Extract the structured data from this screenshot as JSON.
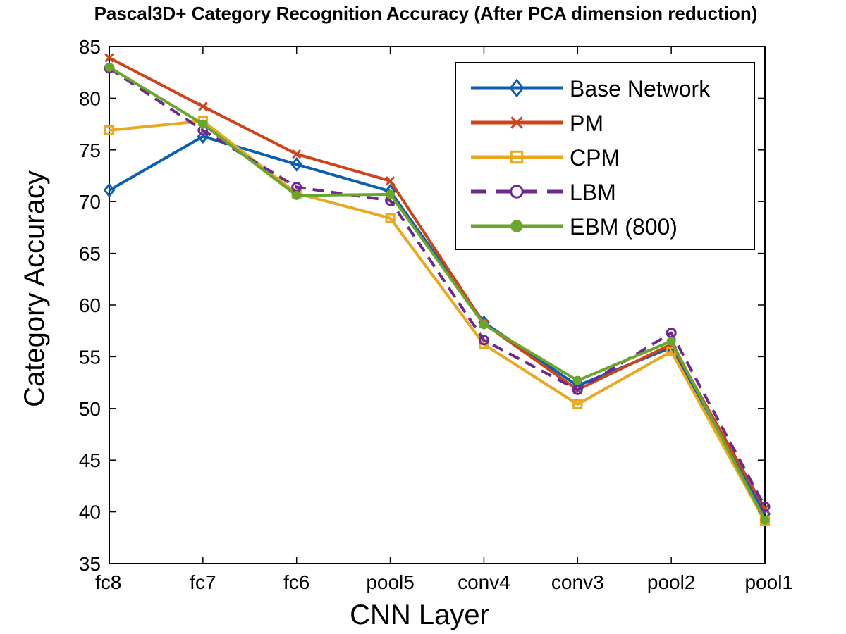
{
  "chart_data": {
    "type": "line",
    "title": "Pascal3D+ Category Recognition Accuracy (After PCA dimension reduction)",
    "xlabel": "CNN Layer",
    "ylabel": "Category Accuracy",
    "categories": [
      "fc8",
      "fc7",
      "fc6",
      "pool5",
      "conv4",
      "conv3",
      "pool2",
      "pool1"
    ],
    "ylim": [
      35,
      85
    ],
    "yticks": [
      35,
      40,
      45,
      50,
      55,
      60,
      65,
      70,
      75,
      80,
      85
    ],
    "grid": false,
    "legend_position": "top-right",
    "series": [
      {
        "name": "Base Network",
        "color": "#0c5fb0",
        "marker": "diamond",
        "dash": "solid",
        "values": [
          71.1,
          76.3,
          73.6,
          71.0,
          58.3,
          52.2,
          55.9,
          39.8
        ]
      },
      {
        "name": "PM",
        "color": "#d0431a",
        "marker": "x",
        "dash": "solid",
        "values": [
          83.9,
          79.2,
          74.6,
          72.0,
          58.2,
          51.8,
          56.2,
          40.3
        ]
      },
      {
        "name": "CPM",
        "color": "#eaa81f",
        "marker": "square",
        "dash": "solid",
        "values": [
          76.9,
          77.8,
          70.8,
          68.4,
          56.2,
          50.4,
          55.5,
          39.1
        ]
      },
      {
        "name": "LBM",
        "color": "#6c2a91",
        "marker": "circle-open",
        "dash": "dashed",
        "values": [
          82.9,
          76.9,
          71.4,
          70.1,
          56.6,
          51.8,
          57.3,
          40.5
        ]
      },
      {
        "name": "EBM (800)",
        "color": "#6aa62b",
        "marker": "circle-filled",
        "dash": "solid",
        "values": [
          83.0,
          77.5,
          70.6,
          70.7,
          58.1,
          52.7,
          56.5,
          39.2
        ]
      }
    ]
  }
}
